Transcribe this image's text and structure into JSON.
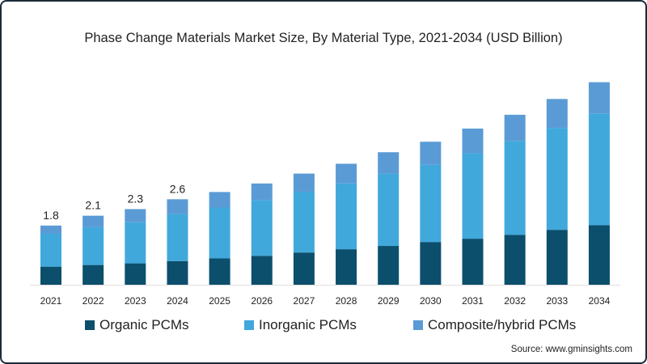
{
  "chart_data": {
    "type": "bar",
    "stacked": true,
    "title": "Phase Change Materials Market Size, By Material Type, 2021-2034 (USD Billion)",
    "xlabel": "",
    "ylabel": "",
    "ylim": [
      0,
      6.2
    ],
    "grid": false,
    "legend_position": "bottom",
    "categories": [
      "2021",
      "2022",
      "2023",
      "2024",
      "2025",
      "2026",
      "2027",
      "2028",
      "2029",
      "2030",
      "2031",
      "2032",
      "2033",
      "2034"
    ],
    "series": [
      {
        "name": "Organic PCMs",
        "color": "#0b4f6c",
        "values": [
          0.55,
          0.6,
          0.65,
          0.72,
          0.8,
          0.88,
          0.98,
          1.08,
          1.18,
          1.3,
          1.4,
          1.52,
          1.67,
          1.81
        ]
      },
      {
        "name": "Inorganic PCMs",
        "color": "#41a8dc",
        "values": [
          1.0,
          1.15,
          1.25,
          1.43,
          1.55,
          1.7,
          1.85,
          2.0,
          2.2,
          2.35,
          2.6,
          2.85,
          3.1,
          3.4
        ]
      },
      {
        "name": "Composite/hybrid PCMs",
        "color": "#5b9bd5",
        "values": [
          0.25,
          0.35,
          0.4,
          0.45,
          0.47,
          0.5,
          0.55,
          0.6,
          0.65,
          0.7,
          0.75,
          0.8,
          0.88,
          0.95
        ]
      }
    ],
    "data_labels": {
      "2021": "1.8",
      "2022": "2.1",
      "2023": "2.3",
      "2024": "2.6"
    }
  },
  "source": "Source: www.gminsights.com"
}
